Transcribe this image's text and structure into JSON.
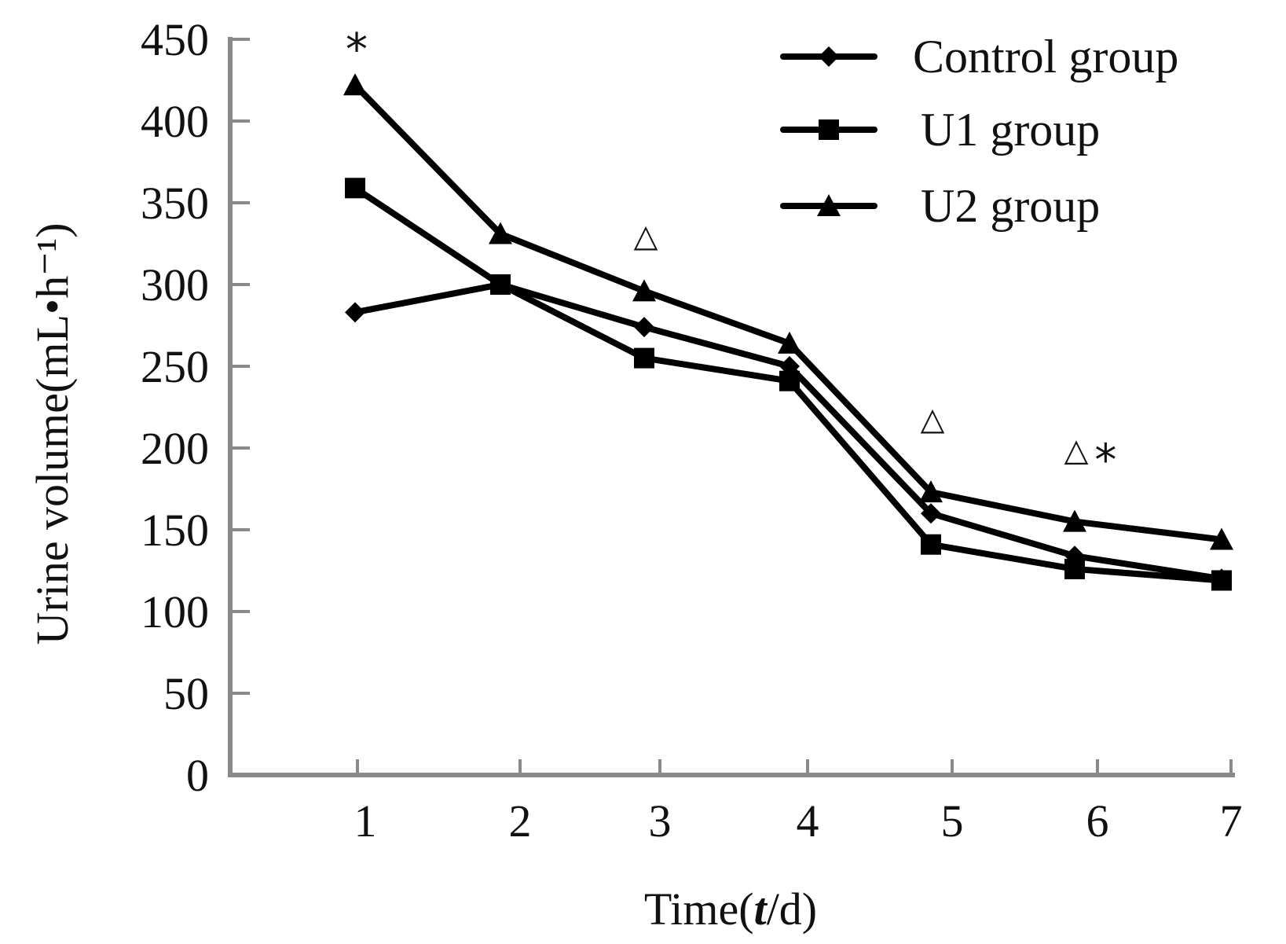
{
  "chart_data": {
    "type": "line",
    "title": "",
    "xlabel_parts": [
      "Time(",
      "t",
      "/d)"
    ],
    "xlabel": "Time(t/d)",
    "ylabel": "Urine volume(mL•h⁻¹)",
    "categories": [
      "1",
      "2",
      "3",
      "4",
      "5",
      "6",
      "7"
    ],
    "x": [
      1,
      2,
      3,
      4,
      5,
      6,
      7
    ],
    "ylim": [
      0,
      450
    ],
    "yticks": [
      0,
      50,
      100,
      150,
      200,
      250,
      300,
      350,
      400,
      450
    ],
    "ytick_labels": [
      "0",
      "50",
      "100",
      "150",
      "200",
      "250",
      "300",
      "350",
      "400",
      "450"
    ],
    "grid": false,
    "legend_position": "top-right",
    "series": [
      {
        "name": "Control group",
        "marker": "diamond",
        "color": "#000000",
        "values": [
          283,
          300,
          274,
          250,
          160,
          134,
          120
        ]
      },
      {
        "name": "U1 group",
        "marker": "square",
        "color": "#000000",
        "values": [
          359,
          300,
          255,
          241,
          141,
          126,
          119
        ]
      },
      {
        "name": "U2 group",
        "marker": "triangle",
        "color": "#000000",
        "values": [
          422,
          331,
          296,
          264,
          173,
          155,
          144
        ]
      }
    ],
    "annotations": [
      {
        "text": "*",
        "x": 1,
        "y": 447
      },
      {
        "text": "△",
        "x": 3,
        "y": 330
      },
      {
        "text": "△",
        "x": 5,
        "y": 218
      },
      {
        "text": "△",
        "x": 6,
        "y": 199
      },
      {
        "text": "*",
        "x": 6.2,
        "y": 196
      }
    ]
  },
  "colors": {
    "axis": "#8a8a8a",
    "line": "#000000",
    "text": "#111111"
  }
}
